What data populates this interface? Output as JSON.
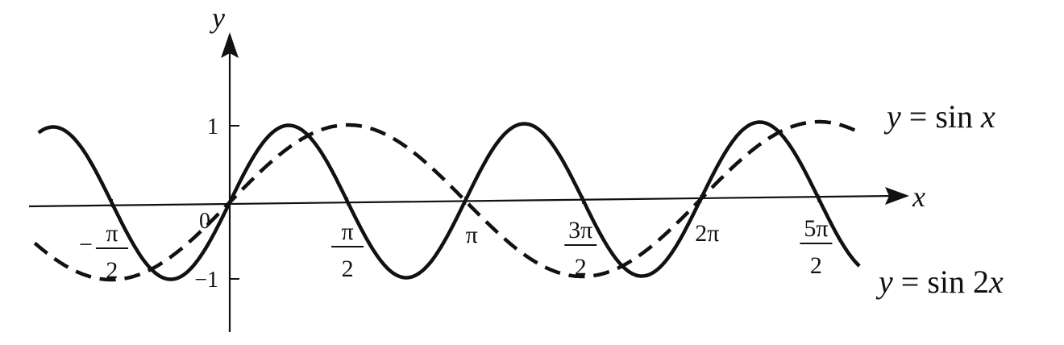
{
  "chart_data": {
    "type": "line",
    "xlabel": "x",
    "ylabel": "y",
    "xlim": [
      -2.4,
      8.6
    ],
    "ylim": [
      -1.25,
      1.95
    ],
    "origin_label": "0",
    "x_ticks": [
      {
        "value": -1.5708,
        "sign": "−",
        "num": "π",
        "den": "2"
      },
      {
        "value": 1.5708,
        "num": "π",
        "den": "2"
      },
      {
        "value": 3.1416,
        "text": "π"
      },
      {
        "value": 4.7124,
        "num": "3π",
        "den": "2"
      },
      {
        "value": 6.2832,
        "text": "2π"
      },
      {
        "value": 7.854,
        "num": "5π",
        "den": "2"
      }
    ],
    "y_ticks": [
      {
        "value": 1,
        "text": "1"
      },
      {
        "value": -1,
        "text": "−1"
      }
    ],
    "series": [
      {
        "id": "sin2x",
        "style": "solid",
        "color": "#111111",
        "label": {
          "lhs": "y",
          "eq": " = sin 2",
          "var": "x"
        },
        "x_range": [
          -2.55,
          8.4
        ]
      },
      {
        "id": "sinx",
        "style": "dashed",
        "color": "#111111",
        "label": {
          "lhs": "y",
          "eq": " = sin ",
          "var": "x"
        },
        "x_range": [
          -2.6,
          8.35
        ]
      }
    ]
  }
}
